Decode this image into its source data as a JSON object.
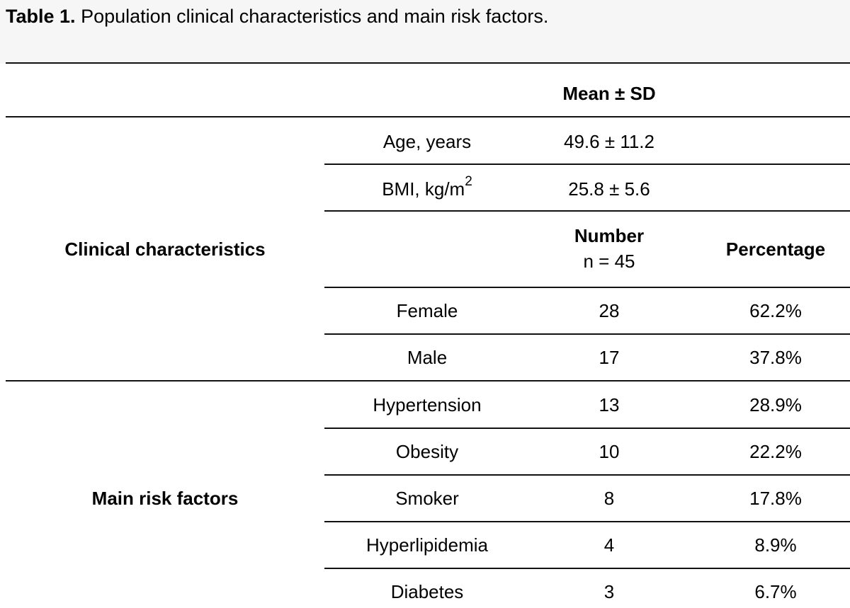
{
  "caption": {
    "label": "Table 1.",
    "text": "Population clinical characteristics and main risk factors."
  },
  "table": {
    "header": {
      "mean_sd": "Mean ± SD"
    },
    "sections": {
      "clinical": "Clinical characteristics",
      "risk": "Main risk factors"
    },
    "measurements": [
      {
        "label": "Age, years",
        "value": "49.6 ± 11.2"
      },
      {
        "label_base": "BMI, kg/m",
        "label_sup": "2",
        "value": "25.8 ± 5.6"
      }
    ],
    "subheader": {
      "number": "Number",
      "n": "n = 45",
      "percentage": "Percentage"
    },
    "rows": [
      {
        "label": "Female",
        "number": "28",
        "percentage": "62.2%"
      },
      {
        "label": "Male",
        "number": "17",
        "percentage": "37.8%"
      },
      {
        "label": "Hypertension",
        "number": "13",
        "percentage": "28.9%"
      },
      {
        "label": "Obesity",
        "number": "10",
        "percentage": "22.2%"
      },
      {
        "label": "Smoker",
        "number": "8",
        "percentage": "17.8%"
      },
      {
        "label": "Hyperlipidemia",
        "number": "4",
        "percentage": "8.9%"
      },
      {
        "label": "Diabetes",
        "number": "3",
        "percentage": "6.7%"
      }
    ]
  }
}
